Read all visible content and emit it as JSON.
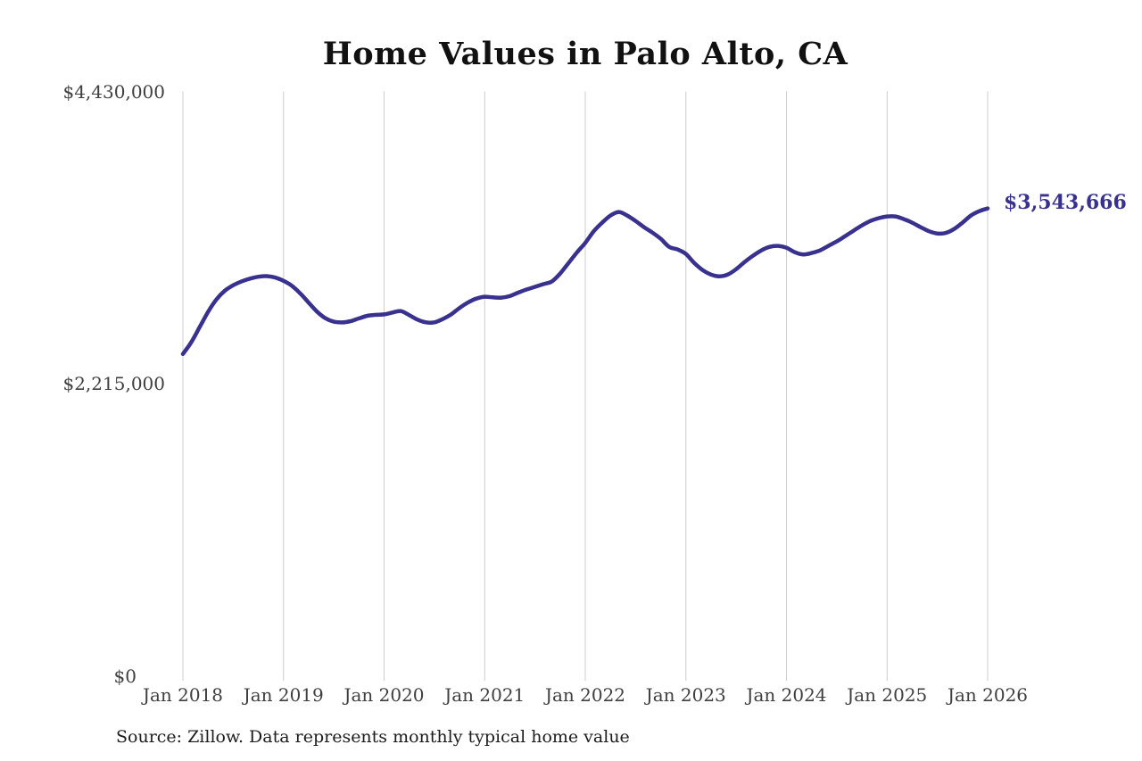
{
  "page": {
    "background": "#ffffff"
  },
  "chart_data": {
    "type": "line",
    "title": "Home Values in Palo Alto, CA",
    "source_note": "Source: Zillow. Data represents monthly typical home value",
    "series_name": "Monthly typical home value",
    "line_color": "#39318e",
    "label_color": "#39318e",
    "grid_color": "#cccccc",
    "axis_text_color": "#3f3f3f",
    "grid": "vertical-only",
    "x_frequency": "monthly",
    "x_start": "Jan 2018",
    "x_end": "Jan 2026",
    "x_tick_labels": [
      "Jan 2018",
      "Jan 2019",
      "Jan 2020",
      "Jan 2021",
      "Jan 2022",
      "Jan 2023",
      "Jan 2024",
      "Jan 2025",
      "Jan 2026"
    ],
    "x_tick_month_indices": [
      0,
      12,
      24,
      36,
      48,
      60,
      72,
      84,
      96
    ],
    "y_ticks": [
      {
        "label": "$0",
        "value": 0
      },
      {
        "label": "$2,215,000",
        "value": 2215000
      },
      {
        "label": "$4,430,000",
        "value": 4430000
      }
    ],
    "ylim": [
      0,
      4430000
    ],
    "latest_label": "$3,543,666",
    "latest_value": 3543666,
    "values": [
      2441000,
      2530000,
      2645000,
      2760000,
      2855000,
      2920000,
      2962000,
      2991000,
      3012000,
      3026000,
      3031000,
      3020000,
      2995000,
      2958000,
      2900000,
      2830000,
      2762000,
      2712000,
      2686000,
      2680000,
      2690000,
      2711000,
      2730000,
      2738000,
      2741000,
      2755000,
      2766000,
      2736000,
      2701000,
      2681000,
      2681000,
      2706000,
      2741000,
      2790000,
      2831000,
      2861000,
      2875000,
      2870000,
      2868000,
      2880000,
      2906000,
      2930000,
      2950000,
      2970000,
      2990000,
      3050000,
      3130000,
      3210000,
      3283000,
      3370000,
      3435000,
      3490000,
      3517000,
      3490000,
      3449000,
      3402000,
      3361000,
      3314000,
      3253000,
      3233000,
      3199000,
      3131000,
      3077000,
      3043000,
      3030000,
      3043000,
      3084000,
      3138000,
      3185000,
      3226000,
      3253000,
      3260000,
      3246000,
      3212000,
      3195000,
      3206000,
      3226000,
      3260000,
      3294000,
      3334000,
      3375000,
      3415000,
      3449000,
      3470000,
      3483000,
      3483000,
      3463000,
      3436000,
      3402000,
      3371000,
      3354000,
      3358000,
      3388000,
      3436000,
      3490000,
      3523000,
      3543666
    ]
  }
}
